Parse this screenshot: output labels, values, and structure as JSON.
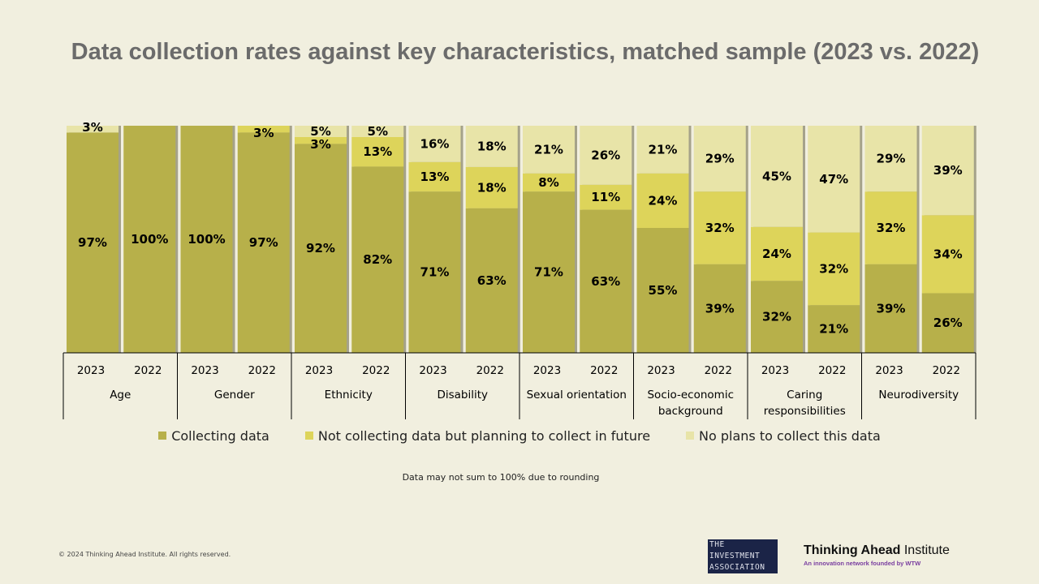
{
  "title": "Data collection rates against key characteristics, matched sample (2023 vs. 2022)",
  "chart_data": {
    "type": "bar",
    "stacked": true,
    "ylim": [
      0,
      100
    ],
    "grid": false,
    "legend_placement": "bottom",
    "groups": [
      "Age",
      "Gender",
      "Ethnicity",
      "Disability",
      "Sexual orientation",
      "Socio-economic background",
      "Caring responsibilities",
      "Neurodiversity"
    ],
    "categories": [
      "2023",
      "2022"
    ],
    "series": [
      {
        "name": "Collecting data",
        "color": "#b7b04a",
        "values": [
          [
            97,
            100
          ],
          [
            100,
            97
          ],
          [
            92,
            82
          ],
          [
            71,
            63
          ],
          [
            71,
            63
          ],
          [
            55,
            39
          ],
          [
            32,
            21
          ],
          [
            39,
            26
          ]
        ]
      },
      {
        "name": "Not collecting data but planning to collect in future",
        "color": "#ddd45a",
        "values": [
          [
            0,
            0
          ],
          [
            0,
            3
          ],
          [
            3,
            13
          ],
          [
            13,
            18
          ],
          [
            8,
            11
          ],
          [
            24,
            32
          ],
          [
            24,
            32
          ],
          [
            32,
            34
          ]
        ]
      },
      {
        "name": "No plans to collect this data",
        "color": "#e8e4a8",
        "values": [
          [
            3,
            0
          ],
          [
            0,
            0
          ],
          [
            5,
            5
          ],
          [
            16,
            18
          ],
          [
            21,
            26
          ],
          [
            21,
            29
          ],
          [
            45,
            47
          ],
          [
            29,
            39
          ]
        ]
      }
    ]
  },
  "note": "Data may not sum to 100% due to rounding",
  "footer": {
    "copyright": "© 2024 Thinking Ahead Institute. All rights reserved.",
    "logo_ia": [
      "THE",
      "INVESTMENT",
      "ASSOCIATION"
    ],
    "logo_tai": {
      "name_bold": "Thinking Ahead",
      "name_rest": " Institute",
      "tagline": "An innovation network founded by WTW"
    }
  }
}
